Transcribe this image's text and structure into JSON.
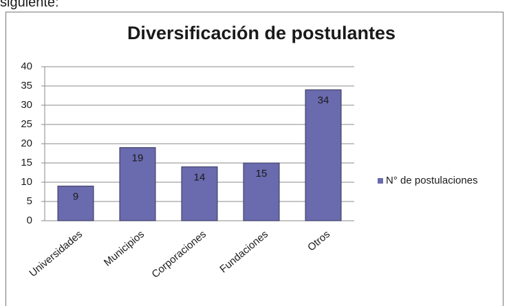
{
  "intro": "siguiente:",
  "chart_data": {
    "type": "bar",
    "title": "Diversificación de postulantes",
    "categories": [
      "Universidades",
      "Municipios",
      "Corporaciones",
      "Fundaciones",
      "Otros"
    ],
    "series": [
      {
        "name": "N° de postulaciones",
        "color": "#6a6aae",
        "values": [
          9,
          19,
          14,
          15,
          34
        ]
      }
    ],
    "ylim": [
      0,
      40
    ],
    "yticks": [
      0,
      5,
      10,
      15,
      20,
      25,
      30,
      35,
      40
    ],
    "grid": true,
    "legend": "right"
  }
}
